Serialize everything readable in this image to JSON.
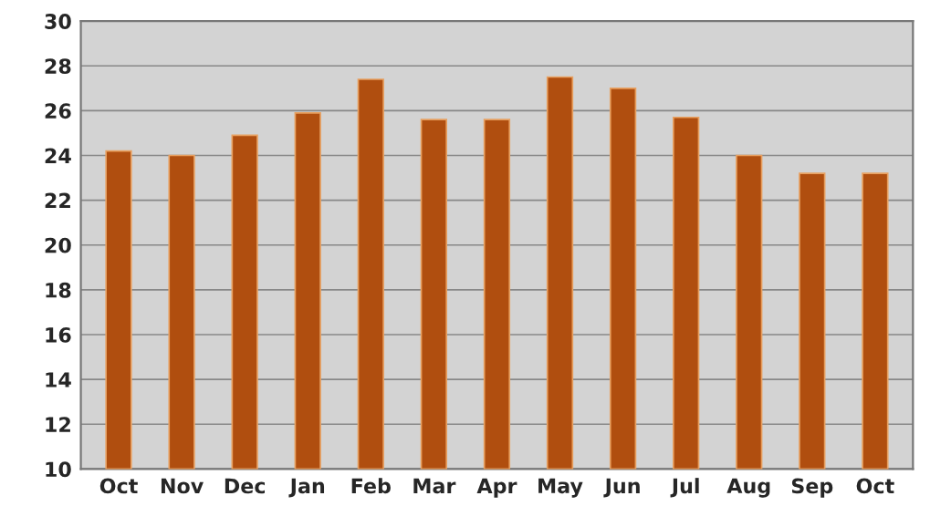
{
  "chart_data": {
    "type": "bar",
    "categories": [
      "Oct",
      "Nov",
      "Dec",
      "Jan",
      "Feb",
      "Mar",
      "Apr",
      "May",
      "Jun",
      "Jul",
      "Aug",
      "Sep",
      "Oct"
    ],
    "values": [
      24.2,
      24.0,
      24.9,
      25.9,
      27.4,
      25.6,
      25.6,
      27.5,
      27.0,
      25.7,
      24.0,
      23.2,
      23.2
    ],
    "color": "#b04e0f",
    "ylim": [
      10,
      30
    ],
    "yticks": [
      10,
      12,
      14,
      16,
      18,
      20,
      22,
      24,
      26,
      28,
      30
    ],
    "grid": "y"
  }
}
